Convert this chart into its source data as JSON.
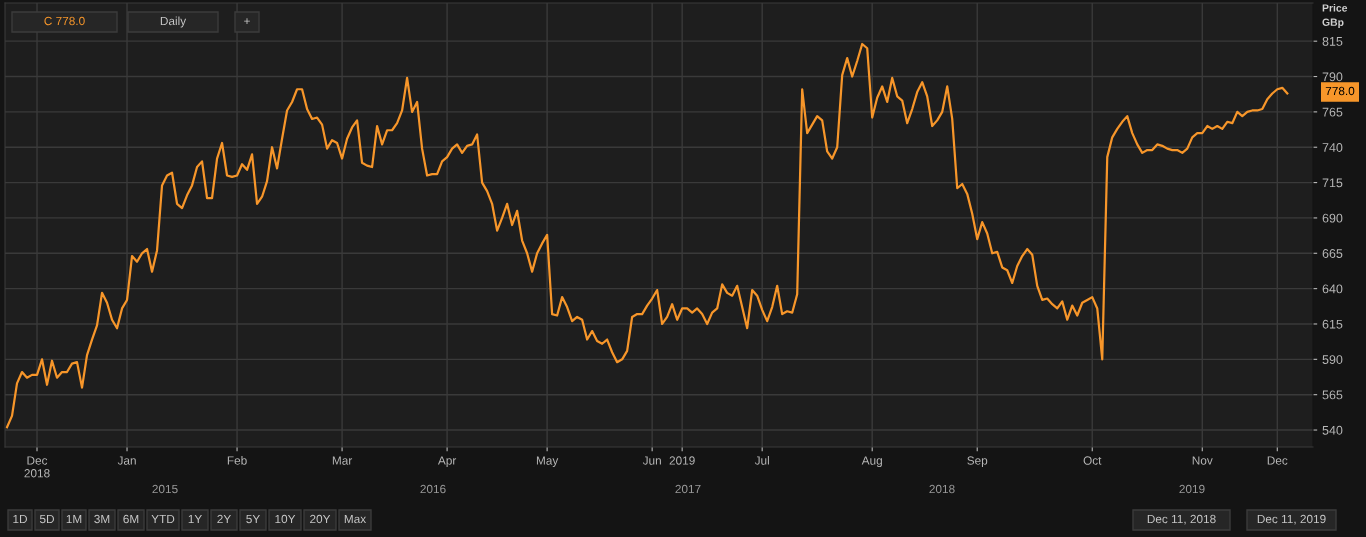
{
  "chart_data": {
    "type": "line",
    "ylabel": "Price\nGBp",
    "categories": [
      null,
      null,
      null,
      null,
      null,
      null,
      "Dec\n2018",
      null,
      null,
      null,
      null,
      null,
      null,
      null,
      null,
      null,
      null,
      null,
      null,
      null,
      null,
      null,
      null,
      null,
      "Jan",
      null,
      null,
      null,
      null,
      null,
      null,
      null,
      null,
      null,
      null,
      null,
      null,
      null,
      null,
      null,
      null,
      null,
      null,
      null,
      null,
      null,
      "Feb",
      null,
      null,
      null,
      null,
      null,
      null,
      null,
      null,
      null,
      null,
      null,
      null,
      null,
      null,
      null,
      null,
      null,
      null,
      null,
      null,
      "Mar",
      null,
      null,
      null,
      null,
      null,
      null,
      null,
      null,
      null,
      null,
      null,
      null,
      null,
      null,
      null,
      null,
      null,
      null,
      null,
      null,
      "Apr",
      null,
      null,
      null,
      null,
      null,
      null,
      null,
      null,
      null,
      null,
      null,
      null,
      null,
      null,
      null,
      null,
      null,
      null,
      null,
      "May",
      null,
      null,
      null,
      null,
      null,
      null,
      null,
      null,
      null,
      null,
      null,
      null,
      null,
      null,
      null,
      null,
      null,
      null,
      null,
      null,
      "Jun",
      null,
      null,
      null,
      null,
      null,
      "2019",
      null,
      null,
      null,
      null,
      null,
      null,
      null,
      null,
      null,
      null,
      null,
      null,
      null,
      null,
      null,
      "Jul",
      null,
      null,
      null,
      null,
      null,
      null,
      null,
      null,
      null,
      null,
      null,
      null,
      null,
      null,
      null,
      null,
      null,
      null,
      null,
      null,
      null,
      "Aug",
      null,
      null,
      null,
      null,
      null,
      null,
      null,
      null,
      null,
      null,
      null,
      null,
      null,
      null,
      null,
      null,
      null,
      null,
      null,
      null,
      "Sep",
      null,
      null,
      null,
      null,
      null,
      null,
      null,
      null,
      null,
      null,
      null,
      null,
      null,
      null,
      null,
      null,
      null,
      null,
      null,
      null,
      null,
      null,
      "Oct",
      null,
      null,
      null,
      null,
      null,
      null,
      null,
      null,
      null,
      null,
      null,
      null,
      null,
      null,
      null,
      null,
      null,
      null,
      null,
      null,
      null,
      "Nov",
      null,
      null,
      null,
      null,
      null,
      null,
      null,
      null,
      null,
      null,
      null,
      null,
      null,
      null,
      "Dec",
      null,
      null
    ],
    "series": [
      {
        "color": "#f7962a",
        "values": [
          542,
          550,
          573,
          581,
          577,
          579,
          579,
          590,
          572,
          589,
          577,
          581,
          581,
          587,
          588,
          570,
          593,
          604,
          614,
          637,
          630,
          618,
          612,
          626,
          632,
          663,
          659,
          665,
          668,
          652,
          667,
          713,
          720,
          722,
          700,
          697,
          706,
          713,
          726,
          730,
          704,
          704,
          732,
          743,
          720,
          719,
          720,
          728,
          724,
          735,
          700,
          705,
          716,
          740,
          725,
          746,
          766,
          772,
          781,
          781,
          767,
          760,
          761,
          756,
          739,
          745,
          743,
          732,
          746,
          754,
          759,
          729,
          727,
          726,
          755,
          742,
          752,
          752,
          757,
          766,
          789,
          765,
          772,
          739,
          720,
          721,
          721,
          730,
          733,
          739,
          742,
          736,
          741,
          742,
          749,
          715,
          709,
          700,
          681,
          690,
          700,
          685,
          695,
          674,
          665,
          652,
          665,
          672,
          678,
          622,
          621,
          634,
          627,
          617,
          620,
          618,
          604,
          610,
          603,
          601,
          604,
          595,
          588,
          590,
          596,
          620,
          622,
          622,
          628,
          633,
          639,
          615,
          620,
          629,
          618,
          626,
          626,
          623,
          626,
          622,
          615,
          623,
          626,
          643,
          637,
          635,
          642,
          627,
          612,
          639,
          635,
          625,
          617,
          627,
          642,
          622,
          624,
          623,
          636,
          781,
          750,
          756,
          762,
          759,
          737,
          732,
          740,
          791,
          803,
          790,
          801,
          813,
          810,
          761,
          775,
          783,
          772,
          789,
          776,
          773,
          757,
          767,
          779,
          786,
          776,
          755,
          759,
          765,
          783,
          760,
          711,
          714,
          707,
          693,
          675,
          687,
          679,
          665,
          666,
          655,
          653,
          644,
          656,
          663,
          668,
          664,
          642,
          632,
          633,
          629,
          626,
          631,
          618,
          628,
          621,
          630,
          632,
          634,
          626,
          590,
          733,
          747,
          753,
          758,
          762,
          750,
          742,
          736,
          738,
          738,
          742,
          741,
          739,
          738,
          738,
          736,
          739,
          747,
          750,
          750,
          755,
          753,
          755,
          753,
          758,
          757,
          765,
          762,
          765,
          766,
          766,
          767,
          774,
          778,
          781,
          782,
          778
        ]
      }
    ],
    "ylim": [
      528,
      842
    ],
    "yticks": [
      540,
      565,
      590,
      615,
      640,
      665,
      690,
      715,
      740,
      765,
      790,
      815
    ],
    "grid": true,
    "line_style": "solid",
    "marker": "none",
    "annotations": [
      "778.0",
      "C 778.0",
      "Daily",
      "+",
      "2015",
      "2016",
      "2017",
      "2018",
      "2019",
      "1D",
      "5D",
      "1M",
      "3M",
      "6M",
      "YTD",
      "1Y",
      "2Y",
      "5Y",
      "10Y",
      "20Y",
      "Max",
      "Dec 11, 2018",
      "Dec 11, 2019"
    ]
  }
}
